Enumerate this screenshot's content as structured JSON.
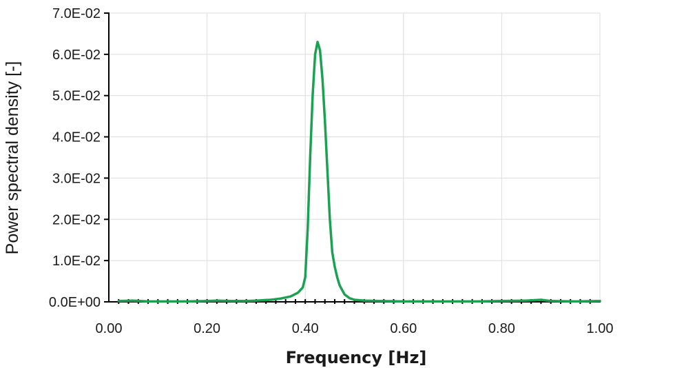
{
  "chart_data": {
    "type": "line",
    "title": "",
    "xlabel": "Frequency [Hz]",
    "ylabel": "Power spectral density [-]",
    "xlim": [
      0,
      1
    ],
    "ylim": [
      0,
      0.07
    ],
    "x_ticks": [
      0,
      0.2,
      0.4,
      0.6,
      0.8,
      1.0
    ],
    "x_tick_labels": [
      "0.00",
      "0.20",
      "0.40",
      "0.60",
      "0.80",
      "1.00"
    ],
    "y_ticks": [
      0,
      0.01,
      0.02,
      0.03,
      0.04,
      0.05,
      0.06,
      0.07
    ],
    "y_tick_labels": [
      "0.0E+00",
      "1.0E-02",
      "2.0E-02",
      "3.0E-02",
      "4.0E-02",
      "5.0E-02",
      "6.0E-02",
      "7.0E-02"
    ],
    "grid": true,
    "legend": "none",
    "series": [
      {
        "color": "#1aa151",
        "x": [
          0.02,
          0.05,
          0.08,
          0.12,
          0.16,
          0.2,
          0.22,
          0.25,
          0.28,
          0.3,
          0.33,
          0.35,
          0.37,
          0.385,
          0.395,
          0.4,
          0.405,
          0.41,
          0.415,
          0.42,
          0.425,
          0.43,
          0.435,
          0.44,
          0.445,
          0.45,
          0.455,
          0.46,
          0.465,
          0.47,
          0.48,
          0.49,
          0.5,
          0.52,
          0.55,
          0.6,
          0.65,
          0.7,
          0.75,
          0.8,
          0.85,
          0.88,
          0.9,
          0.95,
          1.0
        ],
        "y": [
          0.0002,
          0.0003,
          0.0001,
          0.0001,
          0.0001,
          0.0002,
          0.0003,
          0.0002,
          0.0002,
          0.0003,
          0.0005,
          0.0008,
          0.0013,
          0.0022,
          0.0035,
          0.006,
          0.018,
          0.035,
          0.05,
          0.06,
          0.063,
          0.061,
          0.054,
          0.044,
          0.032,
          0.02,
          0.012,
          0.0085,
          0.006,
          0.004,
          0.0018,
          0.0009,
          0.0005,
          0.0003,
          0.0002,
          0.0001,
          0.0001,
          0.0001,
          0.0001,
          0.0002,
          0.0003,
          0.0005,
          0.0002,
          0.0001,
          0.0002
        ]
      }
    ]
  }
}
